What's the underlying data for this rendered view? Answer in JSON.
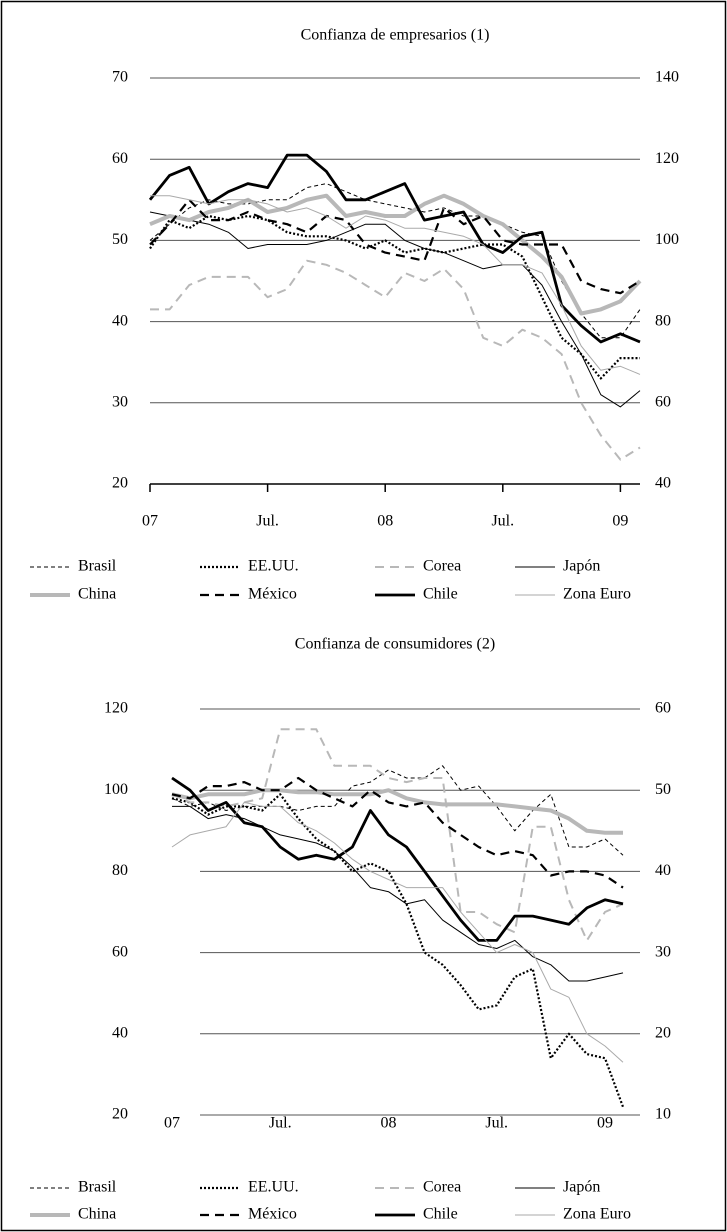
{
  "chart_data": [
    {
      "type": "line",
      "title": "Confianza de empresarios (1)",
      "categories": [
        "07",
        null,
        null,
        null,
        null,
        null,
        "Jul.",
        null,
        null,
        null,
        null,
        null,
        "08",
        null,
        null,
        null,
        null,
        null,
        "Jul.",
        null,
        null,
        null,
        null,
        null,
        "09",
        null
      ],
      "ylim": [
        20,
        70
      ],
      "yticks": [
        20,
        30,
        40,
        50,
        60,
        70
      ],
      "y2lim": [
        40,
        140
      ],
      "y2ticks": [
        40,
        60,
        80,
        100,
        120,
        140
      ],
      "grid": true,
      "series": [
        {
          "name": "Brasil",
          "color": "#000000",
          "values": [
            50,
            52,
            54,
            55,
            54.5,
            54.5,
            55,
            55,
            56.5,
            57,
            56,
            55,
            54.5,
            54,
            53.5,
            54,
            53,
            53,
            52,
            51,
            50.5,
            45,
            41,
            38,
            38,
            41.5
          ]
        },
        {
          "name": "EE.UU.",
          "color": "#000000",
          "values": [
            49,
            52.5,
            51.5,
            53,
            52.5,
            53,
            52.5,
            51,
            50.5,
            50.5,
            50,
            49,
            50,
            48.5,
            49,
            48.5,
            49,
            49.5,
            49.5,
            48,
            43,
            38,
            36,
            33,
            35.5,
            35.5
          ]
        },
        {
          "name": "Corea",
          "color": "#b8b8b8",
          "values": [
            41.5,
            41.5,
            44.5,
            45.5,
            45.5,
            45.5,
            43,
            44,
            47.5,
            47,
            46,
            44.5,
            43,
            46,
            45,
            46.5,
            44,
            38,
            37,
            39,
            38,
            36,
            30,
            26,
            23,
            24.5
          ]
        },
        {
          "name": "Japón",
          "color": "#000000",
          "values": [
            53.5,
            53,
            52.5,
            52,
            51,
            49,
            49.5,
            49.5,
            49.5,
            50,
            51,
            52,
            52,
            50,
            49,
            48.5,
            47.5,
            46.5,
            47,
            47,
            44.5,
            40,
            36,
            31,
            29.5,
            31.5
          ]
        },
        {
          "name": "China",
          "color": "#b8b8b8",
          "values": [
            52,
            53,
            52.5,
            53.5,
            54,
            55,
            53.5,
            54,
            55,
            55.5,
            53,
            53.5,
            53,
            53,
            54.5,
            55.5,
            54.5,
            53,
            52,
            50,
            48,
            45.5,
            41,
            41.5,
            42.5,
            45
          ]
        },
        {
          "name": "México",
          "color": "#000000",
          "values": [
            49.5,
            52,
            55,
            52.5,
            52.5,
            53.5,
            52.5,
            52,
            51,
            53,
            52.5,
            49.5,
            48.5,
            48,
            47.5,
            54,
            52,
            53,
            50,
            49.5,
            49.5,
            49.5,
            45,
            44,
            43.5,
            45
          ]
        },
        {
          "name": "Chile",
          "color": "#000000",
          "values": [
            55,
            58,
            59,
            54.5,
            56,
            57,
            56.5,
            60.5,
            60.5,
            58.5,
            55,
            55,
            56,
            57,
            52.5,
            53,
            53.5,
            49.5,
            48.5,
            50.5,
            51,
            42,
            39.5,
            37.5,
            38.5,
            37.5
          ]
        },
        {
          "name": "Zona Euro",
          "color": "#aaaaaa",
          "values": [
            55.5,
            55.5,
            55,
            54.5,
            55,
            55,
            54.5,
            53.5,
            54,
            53,
            51.5,
            53,
            52.5,
            51.5,
            51.5,
            51,
            50.5,
            49.5,
            47,
            47,
            46,
            42,
            37,
            34,
            34.5,
            33.5
          ]
        }
      ]
    },
    {
      "type": "line",
      "title": "Confianza de consumidores (2)",
      "categories": [
        "07",
        null,
        null,
        null,
        null,
        null,
        "Jul.",
        null,
        null,
        null,
        null,
        null,
        "08",
        null,
        null,
        null,
        null,
        null,
        "Jul.",
        null,
        null,
        null,
        null,
        null,
        "09",
        null
      ],
      "ylim": [
        20,
        120
      ],
      "yticks": [
        20,
        40,
        60,
        80,
        100,
        120
      ],
      "y2lim": [
        10,
        60
      ],
      "y2ticks": [
        10,
        20,
        30,
        40,
        50,
        60
      ],
      "grid": true,
      "series": [
        {
          "name": "Brasil",
          "color": "#000000",
          "values": [
            98,
            96,
            97,
            95,
            96,
            96,
            96,
            95,
            96,
            96,
            101,
            102,
            105,
            103,
            103,
            106,
            100,
            101,
            96,
            90,
            95,
            99,
            86,
            86,
            88,
            84
          ]
        },
        {
          "name": "EE.UU.",
          "color": "#000000",
          "values": [
            98,
            97,
            94,
            96,
            96,
            95,
            99,
            93,
            88,
            85,
            80,
            82,
            80,
            72,
            60,
            57,
            52,
            46,
            47,
            54,
            56,
            34,
            40,
            35,
            34,
            22
          ]
        },
        {
          "name": "Corea",
          "color": "#b8b8b8",
          "values": [
            99,
            97,
            97,
            96,
            97,
            98,
            115,
            115,
            115,
            106,
            106,
            106,
            103,
            102,
            103,
            103,
            70,
            70,
            67,
            65,
            91,
            91,
            73,
            63,
            70,
            72
          ]
        },
        {
          "name": "Japón",
          "color": "#000000",
          "values": [
            96,
            96,
            93,
            94,
            93,
            91,
            89,
            88,
            87,
            85,
            81,
            76,
            75,
            72,
            73,
            68,
            65,
            62,
            61,
            63,
            59,
            57,
            53,
            53,
            54,
            55
          ]
        },
        {
          "name": "China",
          "color": "#b8b8b8",
          "values": [
            99,
            98,
            99,
            99,
            99,
            100,
            100,
            99.5,
            99.5,
            99,
            99,
            99,
            100,
            98,
            97,
            96.5,
            96.5,
            96.5,
            96.5,
            96,
            95.5,
            95,
            93,
            90,
            89.5,
            89.5
          ]
        },
        {
          "name": "México",
          "color": "#000000",
          "values": [
            99,
            98,
            101,
            101,
            102,
            100,
            100,
            103,
            100,
            98,
            96,
            100,
            97,
            96,
            97,
            92,
            89,
            86,
            84,
            85,
            84,
            79,
            80,
            80,
            79,
            76
          ]
        },
        {
          "name": "Chile",
          "color": "#000000",
          "values": [
            103,
            100,
            95,
            97,
            92,
            91,
            86,
            83,
            84,
            83,
            86,
            95,
            89,
            86,
            80,
            74,
            68,
            63,
            63,
            69,
            69,
            68,
            67,
            71,
            73,
            72
          ]
        },
        {
          "name": "Zona Euro",
          "color": "#aaaaaa",
          "values": [
            86,
            89,
            90,
            91,
            97,
            96,
            96,
            92,
            90,
            87,
            83,
            80,
            78,
            76,
            76,
            76,
            70,
            65,
            60,
            62,
            60,
            51,
            49,
            40,
            37,
            33
          ]
        }
      ]
    }
  ]
}
